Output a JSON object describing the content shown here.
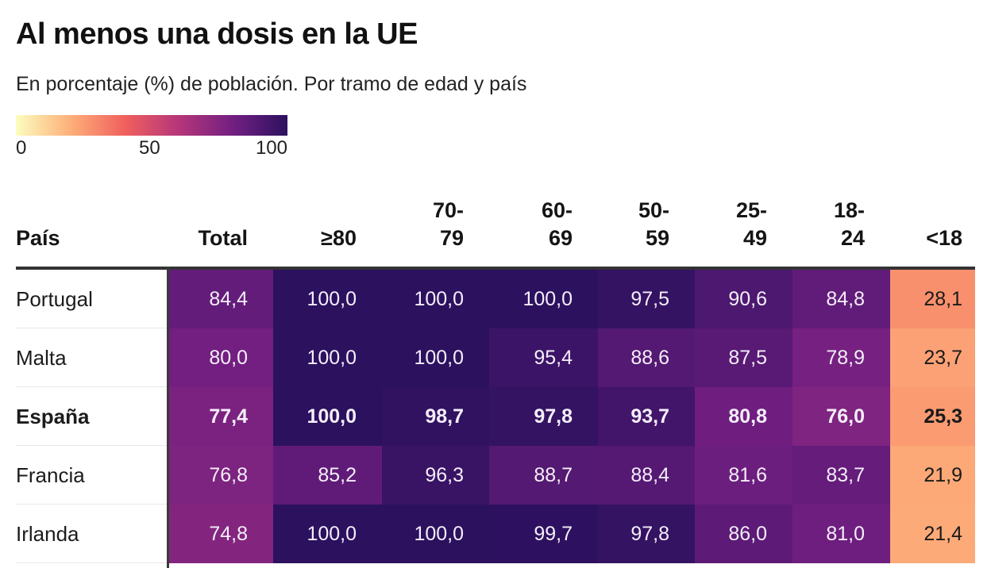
{
  "title": "Al menos una dosis en la UE",
  "subtitle": "En porcentaje (%) de población. Por tramo de edad y país",
  "legend": {
    "ticks": [
      "0",
      "50",
      "100"
    ],
    "scale_min": 0,
    "scale_max": 100,
    "colors": [
      "#fcfdbf",
      "#fdb07a",
      "#f1605d",
      "#b5367a",
      "#721f81",
      "#2c115f"
    ]
  },
  "table": {
    "headers": [
      {
        "line1": "",
        "line2": "País"
      },
      {
        "line1": "",
        "line2": "Total"
      },
      {
        "line1": "",
        "line2": "≥80"
      },
      {
        "line1": "70-",
        "line2": "79"
      },
      {
        "line1": "60-",
        "line2": "69"
      },
      {
        "line1": "50-",
        "line2": "59"
      },
      {
        "line1": "25-",
        "line2": "49"
      },
      {
        "line1": "18-",
        "line2": "24"
      },
      {
        "line1": "",
        "line2": "<18"
      }
    ],
    "rows": [
      {
        "country": "Portugal",
        "highlight": false,
        "values": [
          "84,4",
          "100,0",
          "100,0",
          "100,0",
          "97,5",
          "90,6",
          "84,8",
          "28,1"
        ]
      },
      {
        "country": "Malta",
        "highlight": false,
        "values": [
          "80,0",
          "100,0",
          "100,0",
          "95,4",
          "88,6",
          "87,5",
          "78,9",
          "23,7"
        ]
      },
      {
        "country": "España",
        "highlight": true,
        "values": [
          "77,4",
          "100,0",
          "98,7",
          "97,8",
          "93,7",
          "80,8",
          "76,0",
          "25,3"
        ]
      },
      {
        "country": "Francia",
        "highlight": false,
        "values": [
          "76,8",
          "85,2",
          "96,3",
          "88,7",
          "88,4",
          "81,6",
          "83,7",
          "21,9"
        ]
      },
      {
        "country": "Irlanda",
        "highlight": false,
        "values": [
          "74,8",
          "100,0",
          "100,0",
          "99,7",
          "97,8",
          "86,0",
          "81,0",
          "21,4"
        ]
      }
    ]
  },
  "chart_data": {
    "type": "heatmap",
    "title": "Al menos una dosis en la UE",
    "subtitle": "En porcentaje (%) de población. Por tramo de edad y país",
    "xlabel": "",
    "ylabel": "País",
    "x": [
      "Total",
      "≥80",
      "70-79",
      "60-69",
      "50-59",
      "25-49",
      "18-24",
      "<18"
    ],
    "y": [
      "Portugal",
      "Malta",
      "España",
      "Francia",
      "Irlanda"
    ],
    "values": [
      [
        84.4,
        100.0,
        100.0,
        100.0,
        97.5,
        90.6,
        84.8,
        28.1
      ],
      [
        80.0,
        100.0,
        100.0,
        95.4,
        88.6,
        87.5,
        78.9,
        23.7
      ],
      [
        77.4,
        100.0,
        98.7,
        97.8,
        93.7,
        80.8,
        76.0,
        25.3
      ],
      [
        76.8,
        85.2,
        96.3,
        88.7,
        88.4,
        81.6,
        83.7,
        21.9
      ],
      [
        74.8,
        100.0,
        100.0,
        99.7,
        97.8,
        86.0,
        81.0,
        21.4
      ]
    ],
    "color_scale": {
      "min": 0,
      "max": 100,
      "ticks": [
        0,
        50,
        100
      ]
    },
    "highlighted_row": "España"
  }
}
